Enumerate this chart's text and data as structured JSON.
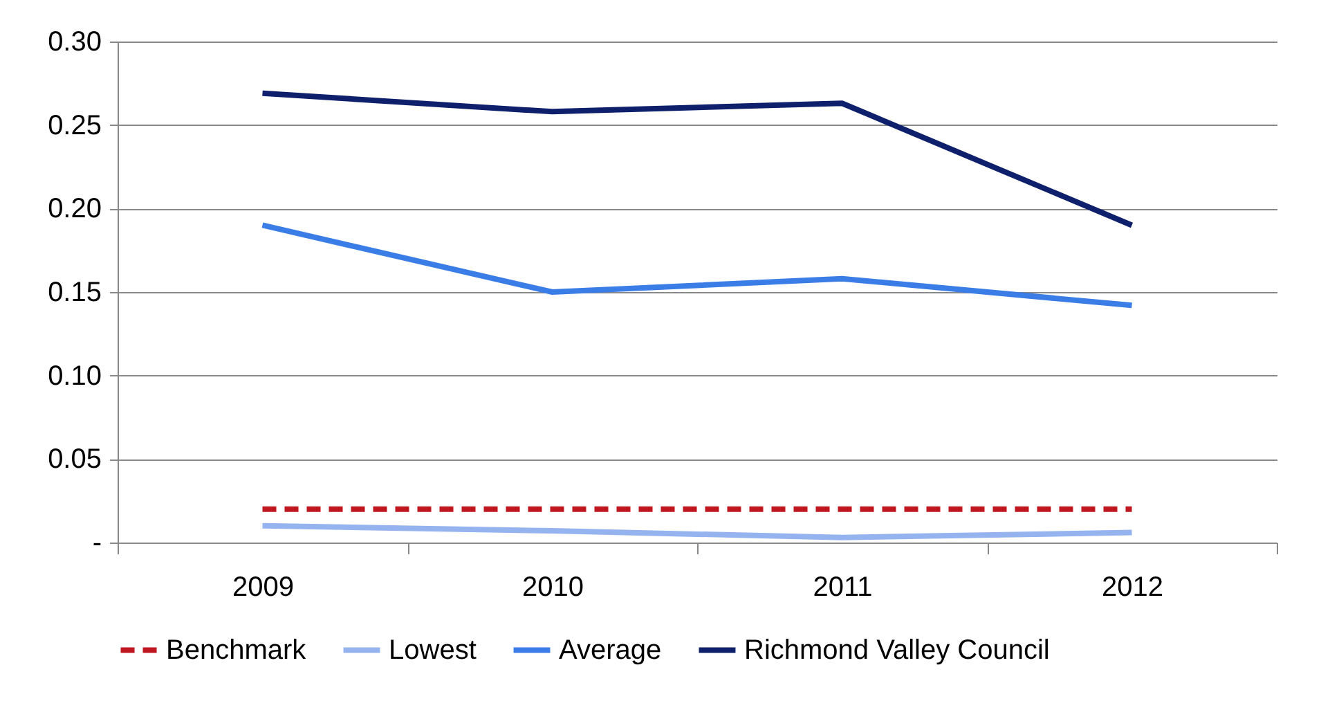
{
  "chart_data": {
    "type": "line",
    "categories": [
      "2009",
      "2010",
      "2011",
      "2012"
    ],
    "series": [
      {
        "name": "Benchmark",
        "color": "#c0161f",
        "line_style": "dashed",
        "values": [
          0.02,
          0.02,
          0.02,
          0.02
        ]
      },
      {
        "name": "Lowest",
        "color": "#95b3ef",
        "values": [
          0.01,
          0.007,
          0.003,
          0.006
        ]
      },
      {
        "name": "Average",
        "color": "#3b7de6",
        "values": [
          0.19,
          0.15,
          0.158,
          0.142
        ]
      },
      {
        "name": "Richmond Valley Council",
        "color": "#0e1f6b",
        "values": [
          0.269,
          0.258,
          0.263,
          0.19
        ]
      }
    ],
    "ylim": [
      0,
      0.3
    ],
    "yticks": [
      {
        "value": 0,
        "label": "-"
      },
      {
        "value": 0.05,
        "label": "0.05"
      },
      {
        "value": 0.1,
        "label": "0.10"
      },
      {
        "value": 0.15,
        "label": "0.15"
      },
      {
        "value": 0.2,
        "label": "0.20"
      },
      {
        "value": 0.25,
        "label": "0.25"
      },
      {
        "value": 0.3,
        "label": "0.30"
      }
    ],
    "grid": "y",
    "legend": "bottom",
    "marker": "none",
    "line_style": "solid"
  }
}
